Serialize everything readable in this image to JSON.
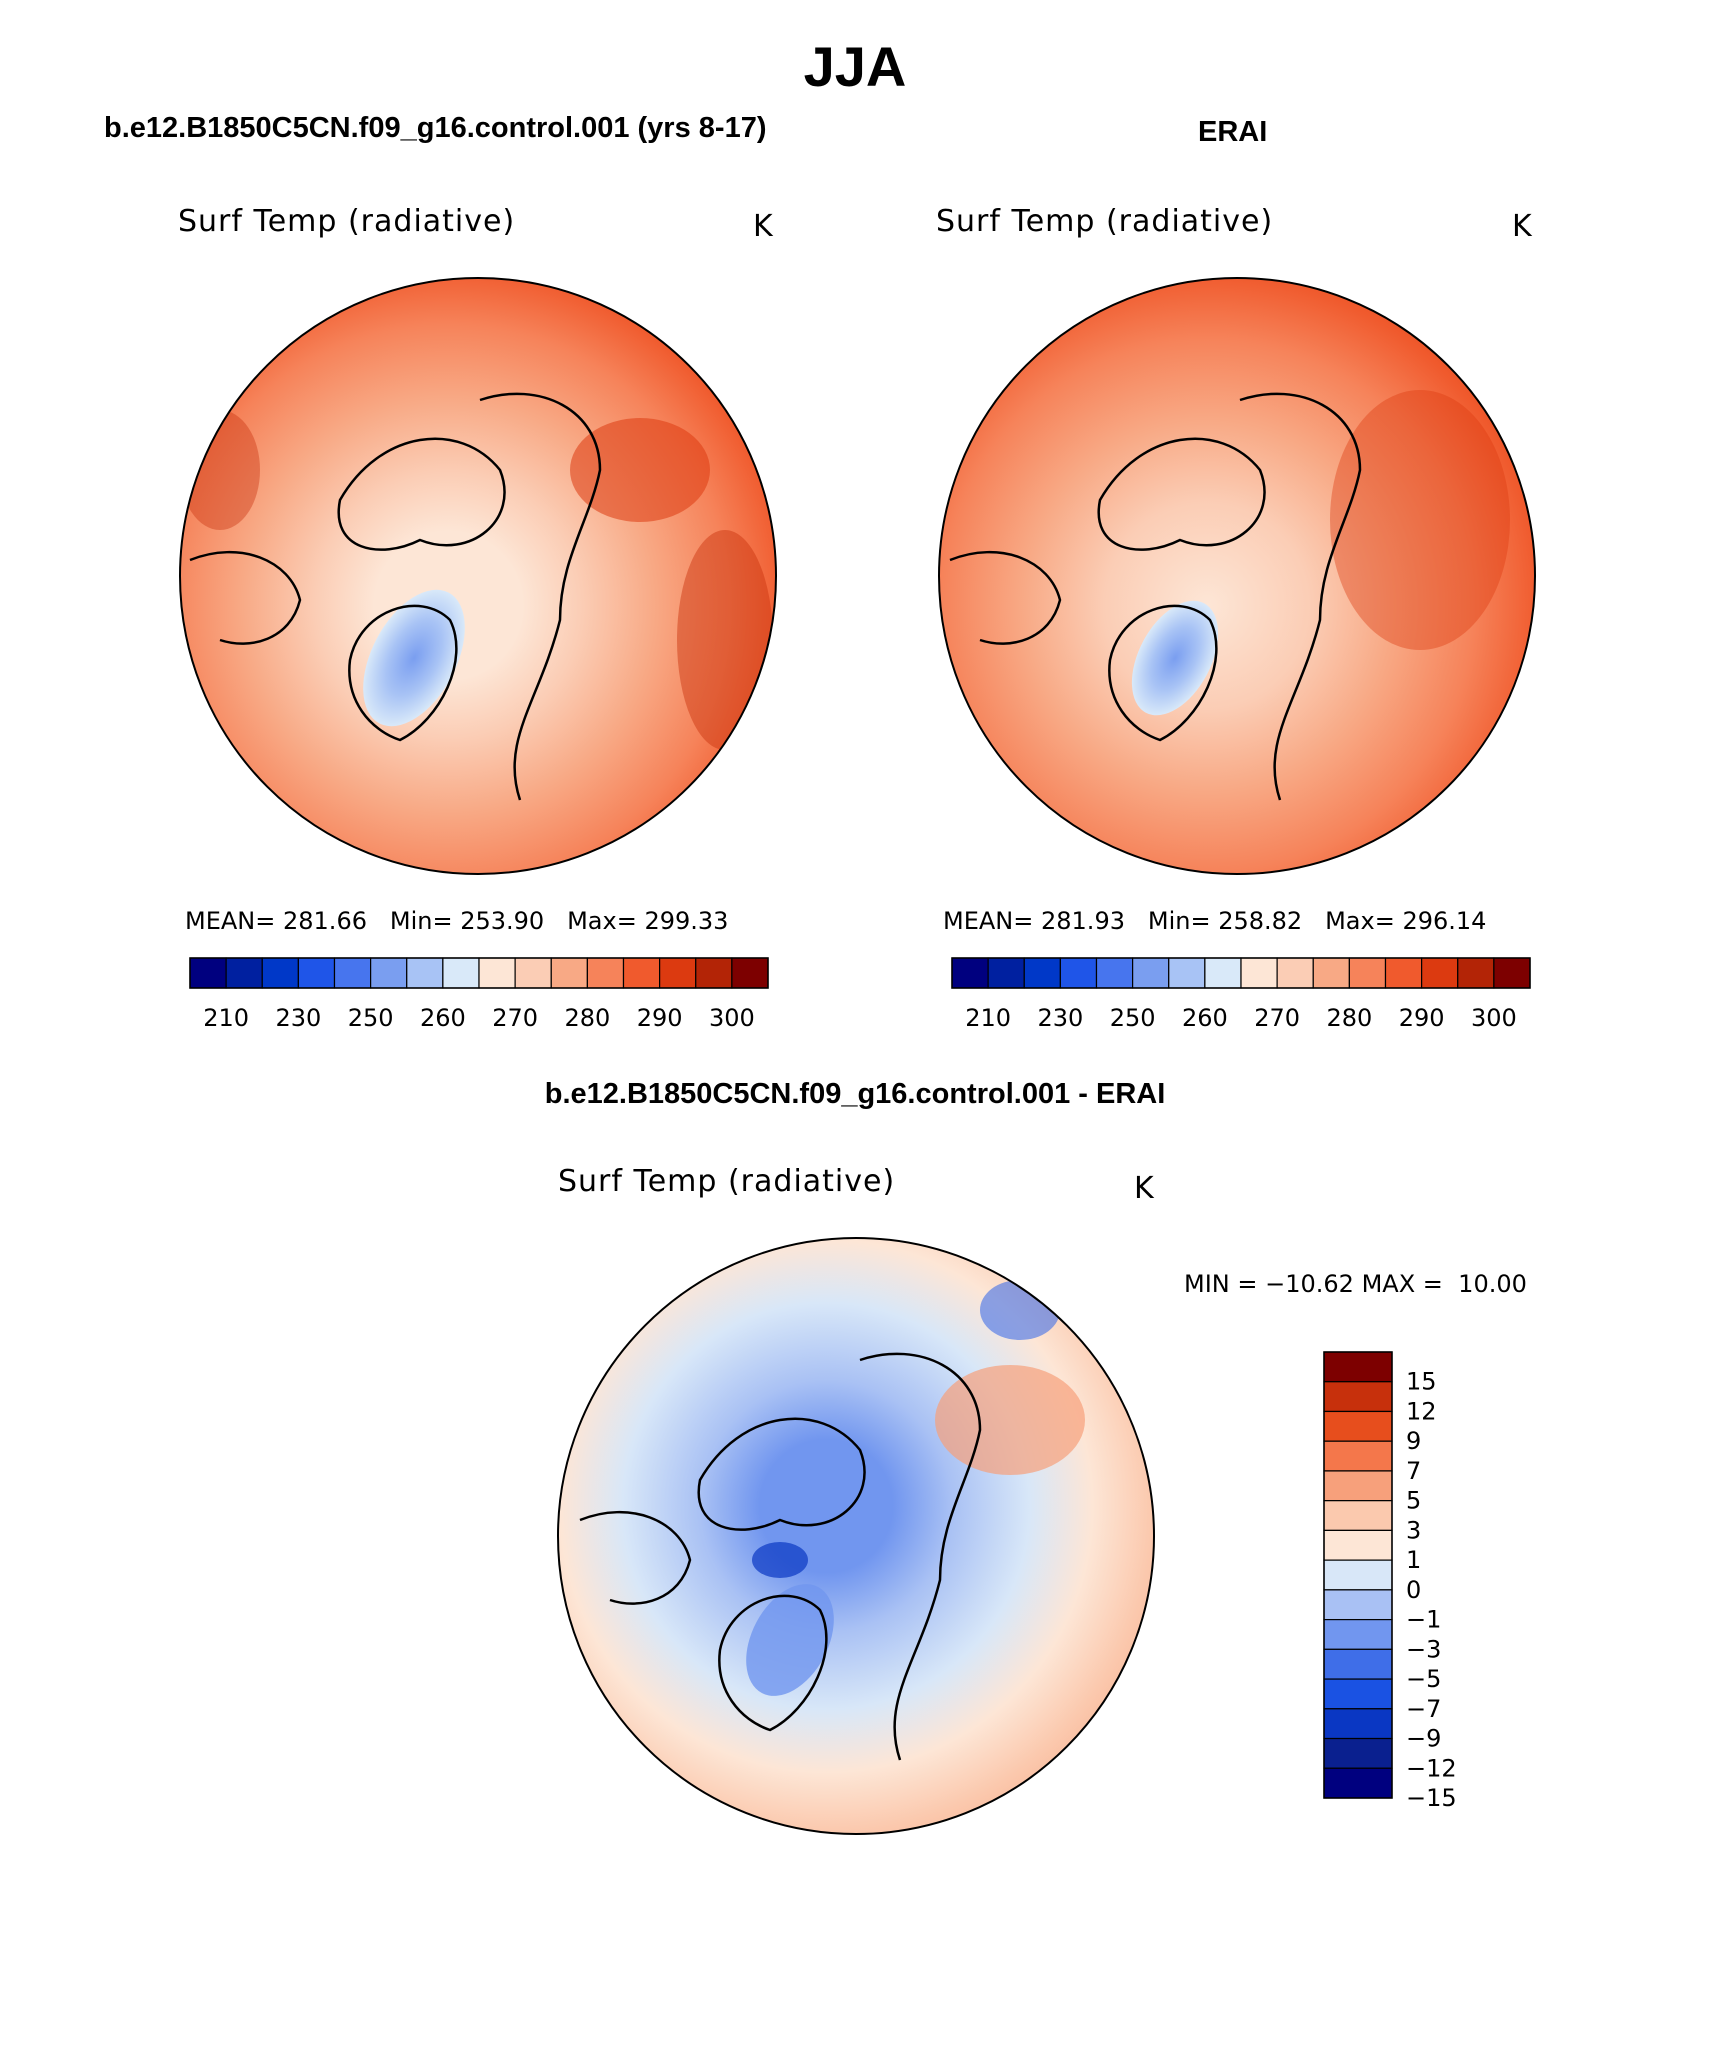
{
  "title": "JJA",
  "panels": {
    "model": {
      "header": "b.e12.B1850C5CN.f09_g16.control.001 (yrs 8-17)",
      "variable": "Surf Temp (radiative)",
      "units": "K",
      "stats": {
        "mean_label": "MEAN=",
        "mean": "281.66",
        "min_label": "Min=",
        "min": "253.90",
        "max_label": "Max=",
        "max": "299.33"
      }
    },
    "obs": {
      "header": "ERAI",
      "variable": "Surf Temp (radiative)",
      "units": "K",
      "stats": {
        "mean_label": "MEAN=",
        "mean": "281.93",
        "min_label": "Min=",
        "min": "258.82",
        "max_label": "Max=",
        "max": "296.14"
      }
    },
    "diff": {
      "header": "b.e12.B1850C5CN.f09_g16.control.001 - ERAI",
      "variable": "Surf Temp (radiative)",
      "units": "K",
      "stats": {
        "min_label": "MIN =",
        "min": "−10.62",
        "max_label": "MAX =",
        "max": "10.00"
      }
    }
  },
  "colors": {
    "temp_scale": [
      "#00007f",
      "#0020a0",
      "#0038c8",
      "#1f55e8",
      "#4775ee",
      "#7a9ef0",
      "#a8c3f5",
      "#d9e9f9",
      "#fde6d6",
      "#fbcdb5",
      "#f8a985",
      "#f6835a",
      "#f05a2d",
      "#dc3a10",
      "#b32406",
      "#7d0000"
    ],
    "diff_scale": [
      "#00007f",
      "#0a208f",
      "#0a37c3",
      "#1a52e3",
      "#3f6ee8",
      "#7196ef",
      "#a9c1f4",
      "#d8e7f8",
      "#fde6d6",
      "#fbc9ae",
      "#f7a07b",
      "#f4774b",
      "#e74e1d",
      "#c7300c",
      "#7d0000"
    ]
  },
  "chart_data": [
    {
      "type": "heatmap",
      "projection": "north-polar-stereographic",
      "title": "b.e12.B1850C5CN.f09_g16.control.001 (yrs 8-17)",
      "variable": "Surf Temp (radiative)",
      "units": "K",
      "colorbar_ticks": [
        "210",
        "230",
        "250",
        "260",
        "270",
        "280",
        "290",
        "300"
      ],
      "summary": {
        "mean": 281.66,
        "min": 253.9,
        "max": 299.33
      }
    },
    {
      "type": "heatmap",
      "projection": "north-polar-stereographic",
      "title": "ERAI",
      "variable": "Surf Temp (radiative)",
      "units": "K",
      "colorbar_ticks": [
        "210",
        "230",
        "250",
        "260",
        "270",
        "280",
        "290",
        "300"
      ],
      "summary": {
        "mean": 281.93,
        "min": 258.82,
        "max": 296.14
      }
    },
    {
      "type": "heatmap",
      "projection": "north-polar-stereographic",
      "title": "b.e12.B1850C5CN.f09_g16.control.001 - ERAI",
      "variable": "Surf Temp (radiative)",
      "units": "K",
      "colorbar_ticks": [
        "15",
        "12",
        "9",
        "7",
        "5",
        "3",
        "1",
        "0",
        "−1",
        "−3",
        "−5",
        "−7",
        "−9",
        "−12",
        "−15"
      ],
      "summary": {
        "min": -10.62,
        "max": 10.0
      }
    }
  ]
}
